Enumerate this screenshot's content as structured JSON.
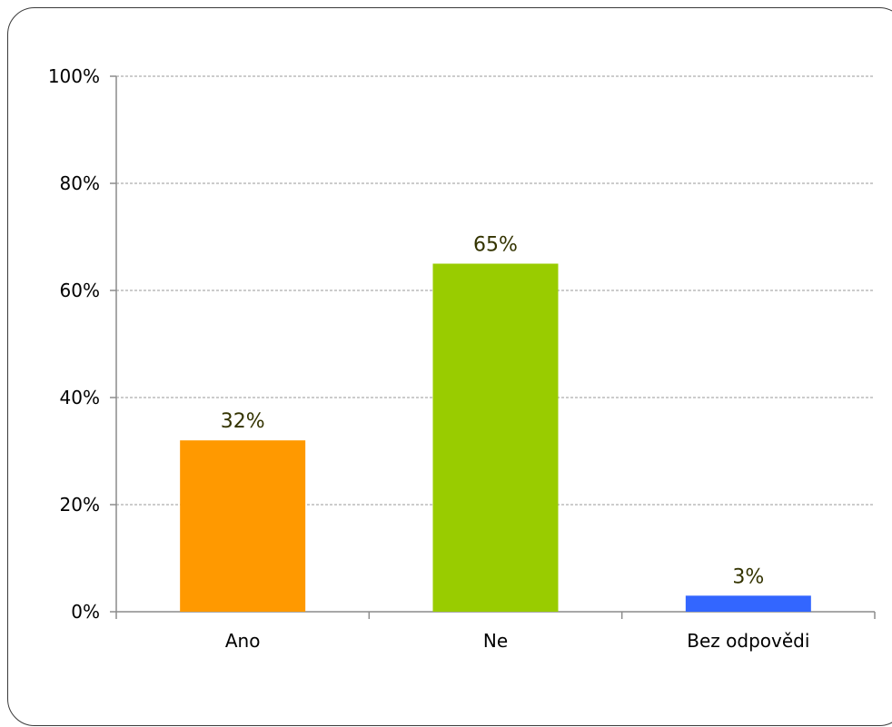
{
  "chart_data": {
    "type": "bar",
    "categories": [
      "Ano",
      "Ne",
      "Bez odpovědi"
    ],
    "values": [
      32,
      65,
      3
    ],
    "data_labels": [
      "32%",
      "65%",
      "3%"
    ],
    "colors": [
      "#FF9900",
      "#99CC00",
      "#3366FF"
    ],
    "title": "",
    "xlabel": "",
    "ylabel": "",
    "ylim": [
      0,
      100
    ],
    "yticks": [
      0,
      20,
      40,
      60,
      80,
      100
    ],
    "ytick_labels": [
      "0%",
      "20%",
      "40%",
      "60%",
      "80%",
      "100%"
    ],
    "grid": true,
    "grid_style": "dashed",
    "data_label_color": "#333300"
  }
}
